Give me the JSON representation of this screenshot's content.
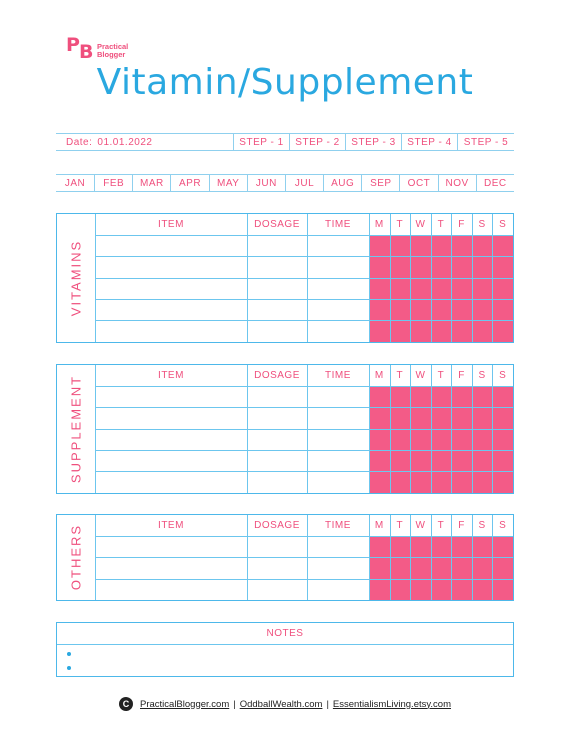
{
  "logo": {
    "mark": "PB",
    "line1": "Practical",
    "line2": "Blogger"
  },
  "title": "Vitamin/Supplement",
  "date_row": {
    "date_label": "Date:",
    "date_value": "01.01.2022",
    "steps": [
      "STEP - 1",
      "STEP - 2",
      "STEP - 3",
      "STEP - 4",
      "STEP - 5"
    ]
  },
  "months": [
    "JAN",
    "FEB",
    "MAR",
    "APR",
    "MAY",
    "JUN",
    "JUL",
    "AUG",
    "SEP",
    "OCT",
    "NOV",
    "DEC"
  ],
  "columns": {
    "item": "ITEM",
    "dosage": "DOSAGE",
    "time": "TIME",
    "days": [
      "M",
      "T",
      "W",
      "T",
      "F",
      "S",
      "S"
    ]
  },
  "sections": [
    {
      "label": "VITAMINS",
      "rows": 5
    },
    {
      "label": "SUPPLEMENT",
      "rows": 5
    },
    {
      "label": "OTHERS",
      "rows": 3
    }
  ],
  "notes": {
    "title": "NOTES",
    "bullets": [
      "",
      ""
    ]
  },
  "footer": {
    "link1": "PracticalBlogger.com",
    "sep": "|",
    "link2": "OddballWealth.com",
    "link3": "EssentialismLiving.etsy.com"
  },
  "colors": {
    "pink": "#ef4f7d",
    "blue": "#2aa8e0",
    "grid_fill": "#f35b87"
  }
}
